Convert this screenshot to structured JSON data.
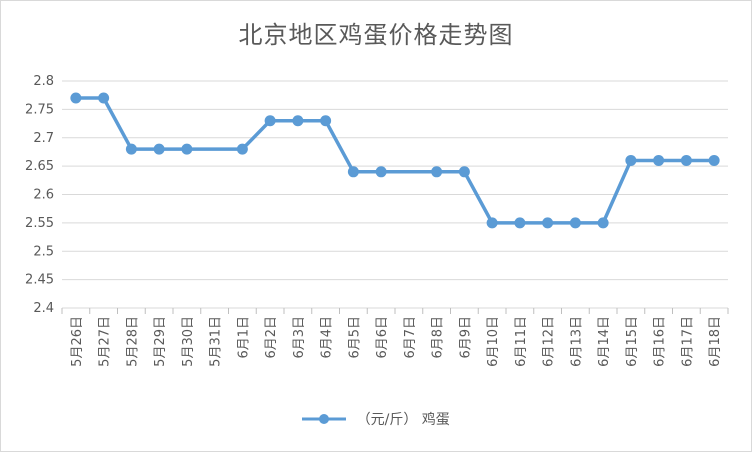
{
  "chart_data": {
    "type": "line",
    "title": "北京地区鸡蛋价格走势图",
    "categories": [
      "5月26日",
      "5月27日",
      "5月28日",
      "5月29日",
      "5月30日",
      "5月31日",
      "6月1日",
      "6月2日",
      "6月3日",
      "6月4日",
      "6月5日",
      "6月6日",
      "6月7日",
      "6月8日",
      "6月9日",
      "6月10日",
      "6月11日",
      "6月12日",
      "6月13日",
      "6月14日",
      "6月15日",
      "6月16日",
      "6月17日",
      "6月18日"
    ],
    "series": [
      {
        "name": "（元/斤） 鸡蛋",
        "values": [
          2.77,
          2.77,
          2.68,
          2.68,
          2.68,
          null,
          2.68,
          2.73,
          2.73,
          2.73,
          2.64,
          2.64,
          null,
          2.64,
          2.64,
          2.55,
          2.55,
          2.55,
          2.55,
          2.55,
          2.66,
          2.66,
          2.66,
          2.66
        ]
      }
    ],
    "yticks": [
      "2.4",
      "2.45",
      "2.5",
      "2.55",
      "2.6",
      "2.65",
      "2.7",
      "2.75",
      "2.8"
    ],
    "ylim": [
      2.4,
      2.8
    ],
    "grid": true,
    "legend": "bottom",
    "color": "#5b9bd5"
  }
}
